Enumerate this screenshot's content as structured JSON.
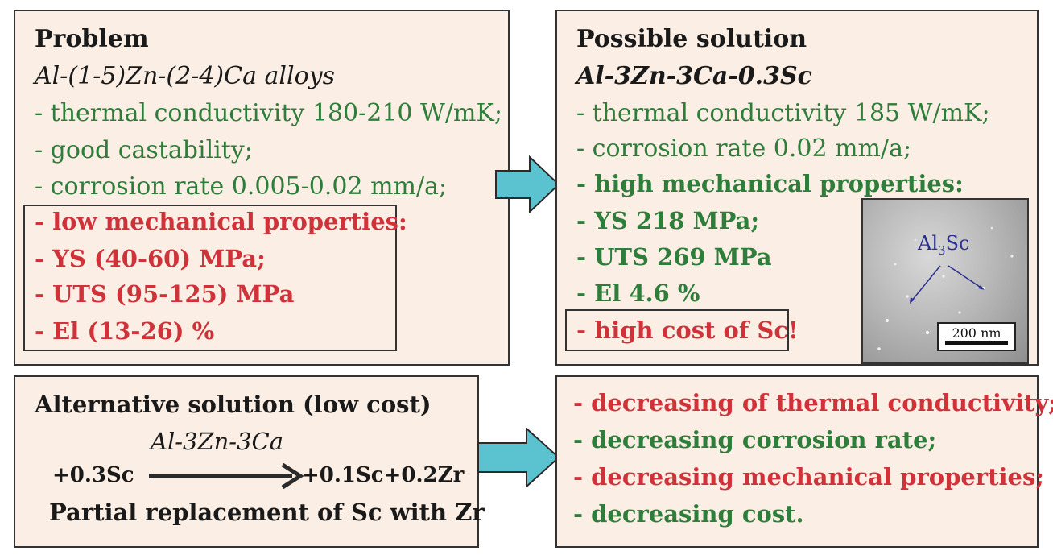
{
  "problem": {
    "title": "Problem",
    "alloy": "Al-(1-5)Zn-(2-4)Ca alloys",
    "pros": [
      "- thermal conductivity 180-210 W/mK;",
      "- good castability;",
      "- corrosion rate 0.005-0.02 mm/a;"
    ],
    "cons": [
      "- low mechanical properties:",
      "- YS (40-60) MPa;",
      "- UTS (95-125) MPa",
      "- El (13-26) %"
    ]
  },
  "solution": {
    "title": "Possible solution",
    "alloy": "Al-3Zn-3Ca-0.3Sc",
    "plain": [
      "- thermal conductivity 185 W/mK;",
      "- corrosion rate 0.02 mm/a;"
    ],
    "bold": [
      "- high mechanical properties:",
      "- YS 218 MPa;",
      "- UTS 269 MPa",
      "- El 4.6 %"
    ],
    "cost": "- high cost of Sc!",
    "micrograph": {
      "label_base": "Al",
      "label_sub": "3",
      "label_tail": "Sc",
      "scale": "200 nm"
    }
  },
  "alternative": {
    "title": "Alternative solution (low cost)",
    "alloy": "Al-3Zn-3Ca",
    "from": "+0.3Sc",
    "to": "+0.1Sc+0.2Zr",
    "caption": "Partial replacement of Sc with Zr"
  },
  "consequences": [
    {
      "text": "- decreasing of thermal conductivity;",
      "color": "#d0323a"
    },
    {
      "text": "- decreasing corrosion rate;",
      "color": "#2e7d3a"
    },
    {
      "text": "- decreasing mechanical properties;",
      "color": "#d0323a"
    },
    {
      "text": "- decreasing cost.",
      "color": "#2e7d3a"
    }
  ],
  "colors": {
    "box_fill": "#fbeee4",
    "arrow": "#5bc3d0",
    "good": "#2e7d3a",
    "bad": "#d0323a"
  }
}
